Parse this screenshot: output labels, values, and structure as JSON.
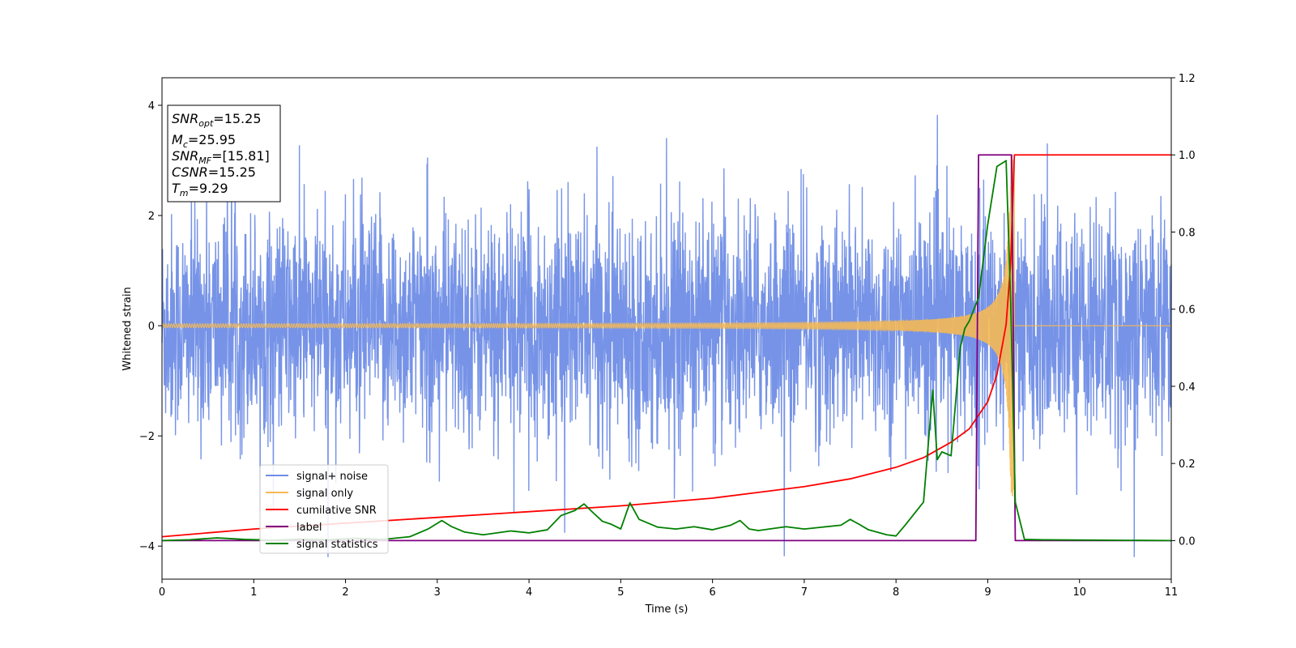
{
  "chart_data": {
    "type": "line",
    "xlabel": "Time (s)",
    "ylabel": "Whitened strain",
    "xlim": [
      0,
      11
    ],
    "ylim": [
      -4.6,
      4.5
    ],
    "y2lim": [
      -0.1,
      1.2
    ],
    "x_ticks": [
      "0",
      "1",
      "2",
      "3",
      "4",
      "5",
      "6",
      "7",
      "8",
      "9",
      "10",
      "11"
    ],
    "y_ticks": [
      "4",
      "2",
      "0",
      "−2",
      "−4"
    ],
    "y_tick_values": [
      4,
      2,
      0,
      -2,
      -4
    ],
    "y2_ticks": [
      "1.2",
      "1.0",
      "0.8",
      "0.6",
      "0.4",
      "0.2",
      "0.0"
    ],
    "y2_tick_values": [
      1.2,
      1.0,
      0.8,
      0.6,
      0.4,
      0.2,
      0.0
    ],
    "grid": false,
    "legend": {
      "placement": "lower-left",
      "entries": [
        {
          "label": "signal+ noise",
          "color": "#6f8de6"
        },
        {
          "label": "signal only",
          "color": "#f5b955"
        },
        {
          "label": "cumilative SNR",
          "color": "#ff0000"
        },
        {
          "label": "label",
          "color": "#800080"
        },
        {
          "label": "signal statistics",
          "color": "#008000"
        }
      ]
    },
    "annotation": {
      "lines": [
        {
          "base": "SNR",
          "sub": "opt",
          "rest": "=15.25"
        },
        {
          "base": "M",
          "sub": "c",
          "rest": "=25.95"
        },
        {
          "base": "SNR",
          "sub": "MF",
          "rest": "=[15.81]"
        },
        {
          "base": "CSNR",
          "sub": "",
          "rest": "=15.25"
        },
        {
          "base": "T",
          "sub": "m",
          "rest": "=9.29"
        }
      ]
    },
    "series": [
      {
        "name": "signal+ noise",
        "axis": "left",
        "style": "noise",
        "amplitude_range": [
          -4.2,
          4.05
        ],
        "x_range": [
          0,
          11
        ]
      },
      {
        "name": "signal only",
        "axis": "left",
        "style": "chirp",
        "x_range": [
          0,
          11
        ],
        "merger_time": 9.29,
        "peak_amplitude": 3.1
      },
      {
        "name": "cumilative SNR",
        "axis": "right",
        "x": [
          0,
          1,
          2,
          3,
          4,
          5,
          6,
          6.5,
          7,
          7.5,
          8,
          8.3,
          8.6,
          8.8,
          9.0,
          9.1,
          9.2,
          9.25,
          9.29,
          11
        ],
        "y": [
          0.01,
          0.03,
          0.045,
          0.06,
          0.075,
          0.09,
          0.11,
          0.125,
          0.14,
          0.16,
          0.19,
          0.215,
          0.255,
          0.29,
          0.36,
          0.43,
          0.56,
          0.72,
          1.0,
          1.0
        ]
      },
      {
        "name": "label",
        "axis": "right",
        "x": [
          0,
          8.87,
          8.9,
          9.26,
          9.3,
          11
        ],
        "y": [
          0.0,
          0.0,
          1.0,
          1.0,
          0.0,
          0.0
        ]
      },
      {
        "name": "signal statistics",
        "axis": "right",
        "x": [
          0,
          0.3,
          0.6,
          0.9,
          1.2,
          1.5,
          1.8,
          2.1,
          2.4,
          2.7,
          2.9,
          3.05,
          3.15,
          3.3,
          3.5,
          3.8,
          4.0,
          4.2,
          4.35,
          4.5,
          4.6,
          4.7,
          4.8,
          4.9,
          5.0,
          5.1,
          5.2,
          5.4,
          5.6,
          5.8,
          6.0,
          6.2,
          6.3,
          6.4,
          6.5,
          6.8,
          7.0,
          7.2,
          7.4,
          7.5,
          7.6,
          7.7,
          7.9,
          8.0,
          8.1,
          8.2,
          8.3,
          8.4,
          8.45,
          8.5,
          8.6,
          8.7,
          8.75,
          8.8,
          8.9,
          9.0,
          9.1,
          9.2,
          9.25,
          9.3,
          9.4,
          9.6,
          11
        ],
        "y": [
          0.0,
          0.002,
          0.007,
          0.003,
          0.001,
          0.004,
          0.002,
          0.006,
          0.003,
          0.01,
          0.03,
          0.052,
          0.037,
          0.022,
          0.015,
          0.025,
          0.02,
          0.028,
          0.065,
          0.078,
          0.095,
          0.072,
          0.05,
          0.042,
          0.03,
          0.098,
          0.055,
          0.035,
          0.03,
          0.036,
          0.028,
          0.04,
          0.052,
          0.03,
          0.026,
          0.036,
          0.03,
          0.035,
          0.04,
          0.055,
          0.042,
          0.028,
          0.015,
          0.012,
          0.04,
          0.07,
          0.1,
          0.39,
          0.21,
          0.23,
          0.22,
          0.5,
          0.55,
          0.57,
          0.63,
          0.82,
          0.97,
          0.985,
          0.62,
          0.1,
          0.003,
          0.002,
          0.0
        ]
      }
    ]
  }
}
